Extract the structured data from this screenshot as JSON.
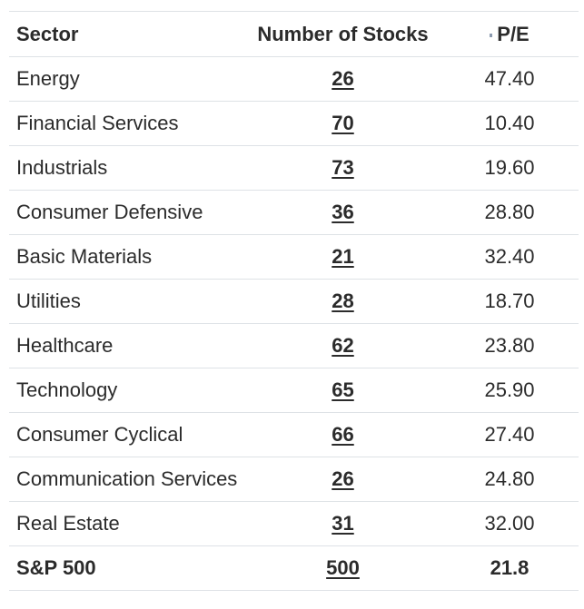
{
  "colors": {
    "background": "#ffffff",
    "text": "#2b2b2b",
    "border": "#dee2e6",
    "sort_mark": "#8c9bb0"
  },
  "table": {
    "columns": [
      {
        "key": "sector",
        "label": "Sector",
        "align": "left"
      },
      {
        "key": "stocks",
        "label": "Number of Stocks",
        "align": "center"
      },
      {
        "key": "pe",
        "label": "P/E",
        "align": "center"
      }
    ],
    "rows": [
      {
        "sector": "Energy",
        "stocks": "26",
        "pe": "47.40"
      },
      {
        "sector": "Financial Services",
        "stocks": "70",
        "pe": "10.40"
      },
      {
        "sector": "Industrials",
        "stocks": "73",
        "pe": "19.60"
      },
      {
        "sector": "Consumer Defensive",
        "stocks": "36",
        "pe": "28.80"
      },
      {
        "sector": "Basic Materials",
        "stocks": "21",
        "pe": "32.40"
      },
      {
        "sector": "Utilities",
        "stocks": "28",
        "pe": "18.70"
      },
      {
        "sector": "Healthcare",
        "stocks": "62",
        "pe": "23.80"
      },
      {
        "sector": "Technology",
        "stocks": "65",
        "pe": "25.90"
      },
      {
        "sector": "Consumer Cyclical",
        "stocks": "66",
        "pe": "27.40"
      },
      {
        "sector": "Communication Services",
        "stocks": "26",
        "pe": "24.80"
      },
      {
        "sector": "Real Estate",
        "stocks": "31",
        "pe": "32.00"
      },
      {
        "sector": "S&P 500",
        "stocks": "500",
        "pe": "21.8"
      }
    ]
  },
  "chart_data": {
    "type": "table",
    "title": "",
    "columns": [
      "Sector",
      "Number of Stocks",
      "P/E"
    ],
    "rows": [
      [
        "Energy",
        26,
        47.4
      ],
      [
        "Financial Services",
        70,
        10.4
      ],
      [
        "Industrials",
        73,
        19.6
      ],
      [
        "Consumer Defensive",
        36,
        28.8
      ],
      [
        "Basic Materials",
        21,
        32.4
      ],
      [
        "Utilities",
        28,
        18.7
      ],
      [
        "Healthcare",
        62,
        23.8
      ],
      [
        "Technology",
        65,
        25.9
      ],
      [
        "Consumer Cyclical",
        66,
        27.4
      ],
      [
        "Communication Services",
        26,
        24.8
      ],
      [
        "Real Estate",
        31,
        32.0
      ],
      [
        "S&P 500",
        500,
        21.8
      ]
    ]
  }
}
